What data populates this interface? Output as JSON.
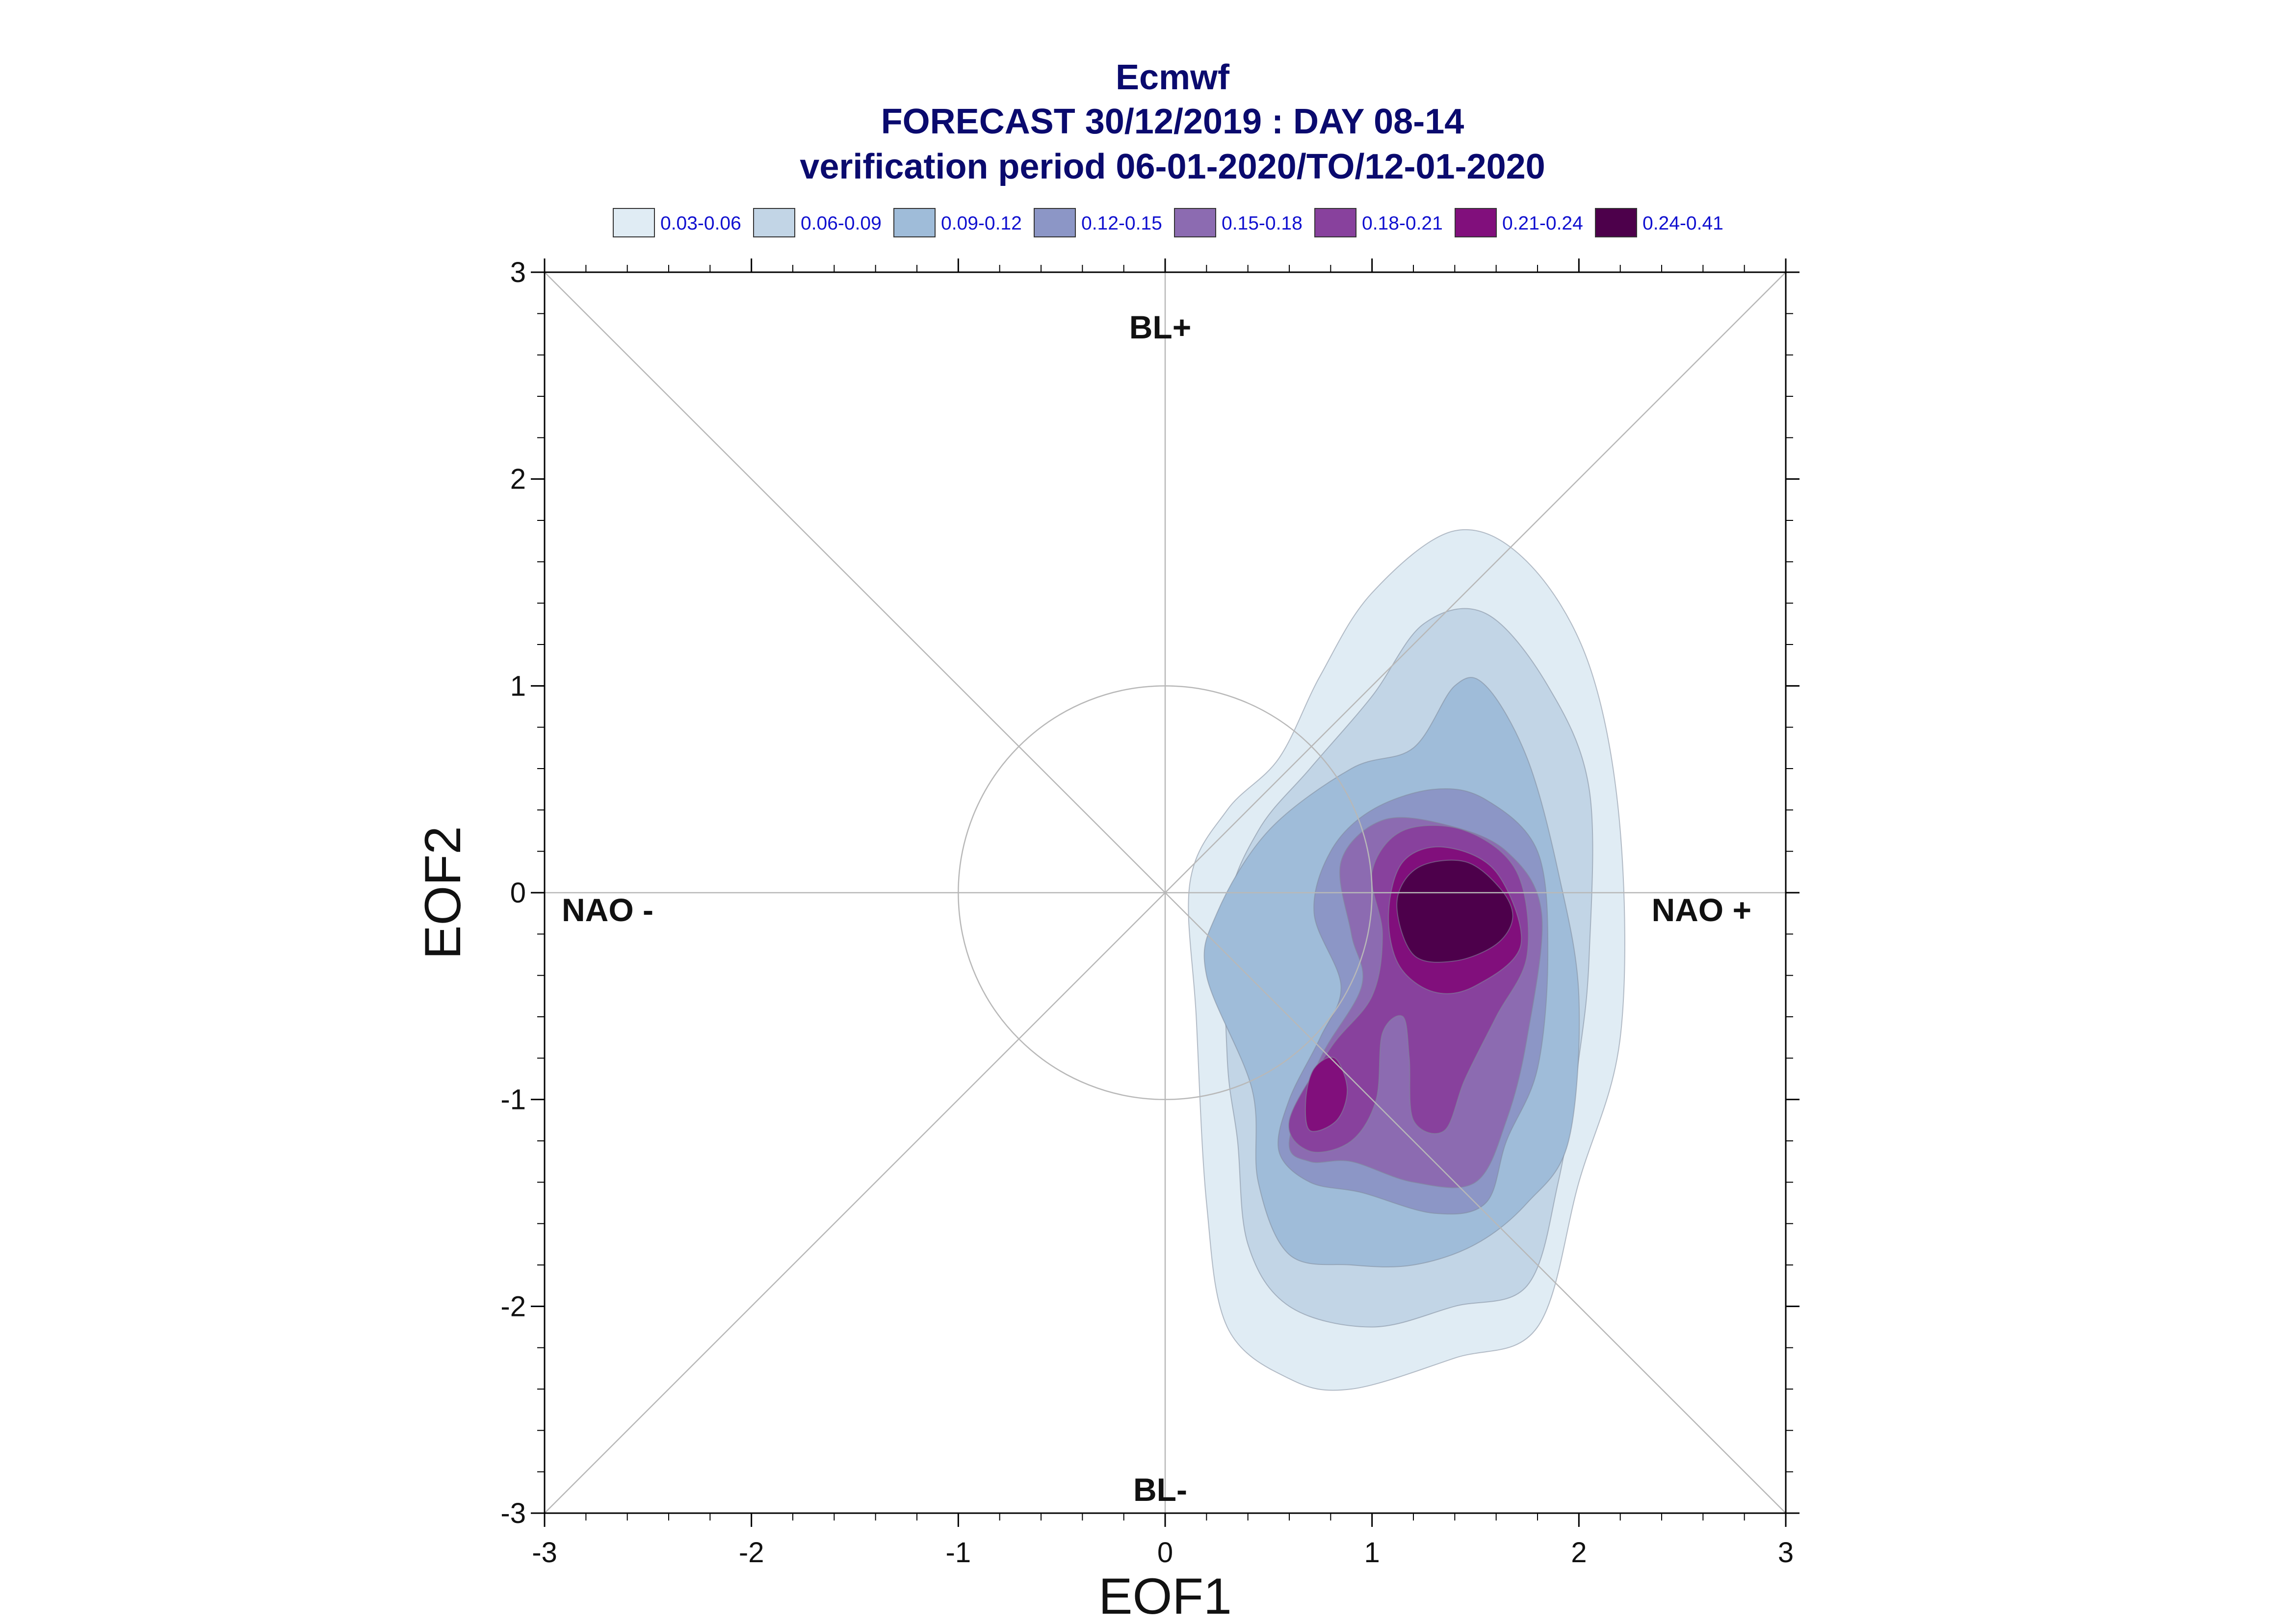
{
  "chart_data": {
    "type": "contour",
    "title_lines": [
      "Ecmwf",
      "FORECAST 30/12/2019 : DAY 08-14",
      "verification period 06-01-2020/TO/12-01-2020"
    ],
    "xlabel": "EOF1",
    "ylabel": "EOF2",
    "xlim": [
      -3,
      3
    ],
    "ylim": [
      -3,
      3
    ],
    "xticks": [
      "-3",
      "-2",
      "-1",
      "0",
      "1",
      "2",
      "3"
    ],
    "yticks": [
      "-3",
      "-2",
      "-1",
      "0",
      "1",
      "2",
      "3"
    ],
    "regime_labels": {
      "top": "BL+",
      "bottom": "BL-",
      "left": "NAO -",
      "right": "NAO +"
    },
    "reference_circle_radius": 1,
    "legend": [
      {
        "label": "0.03-0.06",
        "color": "#e0ecf4"
      },
      {
        "label": "0.06-0.09",
        "color": "#c2d5e6"
      },
      {
        "label": "0.09-0.12",
        "color": "#9fbcd9"
      },
      {
        "label": "0.12-0.15",
        "color": "#8c96c6"
      },
      {
        "label": "0.15-0.18",
        "color": "#8c6bb1"
      },
      {
        "label": "0.18-0.21",
        "color": "#88419d"
      },
      {
        "label": "0.21-0.24",
        "color": "#810f7c"
      },
      {
        "label": "0.24-0.41",
        "color": "#4d004b"
      }
    ],
    "contours": [
      {
        "level": "0.03-0.06",
        "polygons": [
          [
            [
              0.15,
              -0.6
            ],
            [
              0.12,
              0.05
            ],
            [
              0.3,
              0.4
            ],
            [
              0.55,
              0.65
            ],
            [
              0.75,
              1.05
            ],
            [
              1.0,
              1.45
            ],
            [
              1.4,
              1.75
            ],
            [
              1.75,
              1.6
            ],
            [
              2.05,
              1.1
            ],
            [
              2.2,
              0.3
            ],
            [
              2.2,
              -0.7
            ],
            [
              2.0,
              -1.4
            ],
            [
              1.8,
              -2.1
            ],
            [
              1.4,
              -2.25
            ],
            [
              0.9,
              -2.4
            ],
            [
              0.6,
              -2.35
            ],
            [
              0.3,
              -2.1
            ],
            [
              0.2,
              -1.5
            ]
          ]
        ]
      },
      {
        "level": "0.06-0.09",
        "polygons": [
          [
            [
              0.3,
              -0.8
            ],
            [
              0.3,
              -0.1
            ],
            [
              0.45,
              0.3
            ],
            [
              0.7,
              0.6
            ],
            [
              1.0,
              0.95
            ],
            [
              1.25,
              1.3
            ],
            [
              1.55,
              1.35
            ],
            [
              1.85,
              1.0
            ],
            [
              2.05,
              0.5
            ],
            [
              2.05,
              -0.3
            ],
            [
              2.0,
              -0.8
            ],
            [
              1.9,
              -1.4
            ],
            [
              1.75,
              -1.9
            ],
            [
              1.4,
              -2.0
            ],
            [
              1.0,
              -2.1
            ],
            [
              0.6,
              -2.0
            ],
            [
              0.4,
              -1.7
            ],
            [
              0.35,
              -1.2
            ]
          ]
        ]
      },
      {
        "level": "0.09-0.12",
        "polygons": [
          [
            [
              0.42,
              -0.95
            ],
            [
              0.2,
              -0.4
            ],
            [
              0.25,
              -0.1
            ],
            [
              0.5,
              0.3
            ],
            [
              0.9,
              0.6
            ],
            [
              1.2,
              0.7
            ],
            [
              1.4,
              1.0
            ],
            [
              1.55,
              1.0
            ],
            [
              1.75,
              0.65
            ],
            [
              1.9,
              0.1
            ],
            [
              2.0,
              -0.5
            ],
            [
              1.95,
              -1.2
            ],
            [
              1.75,
              -1.5
            ],
            [
              1.5,
              -1.7
            ],
            [
              1.2,
              -1.8
            ],
            [
              0.9,
              -1.8
            ],
            [
              0.6,
              -1.75
            ],
            [
              0.45,
              -1.4
            ]
          ]
        ]
      },
      {
        "level": "0.12-0.15",
        "polygons": [
          [
            [
              0.6,
              -1.0
            ],
            [
              0.75,
              -0.7
            ],
            [
              0.85,
              -0.45
            ],
            [
              0.72,
              -0.1
            ],
            [
              0.8,
              0.2
            ],
            [
              1.0,
              0.4
            ],
            [
              1.3,
              0.5
            ],
            [
              1.55,
              0.45
            ],
            [
              1.8,
              0.2
            ],
            [
              1.85,
              -0.3
            ],
            [
              1.8,
              -0.85
            ],
            [
              1.65,
              -1.2
            ],
            [
              1.55,
              -1.5
            ],
            [
              1.3,
              -1.55
            ],
            [
              0.95,
              -1.45
            ],
            [
              0.7,
              -1.4
            ],
            [
              0.55,
              -1.25
            ]
          ]
        ]
      },
      {
        "level": "0.15-0.18",
        "polygons": [
          [
            [
              0.6,
              -1.2
            ],
            [
              0.75,
              -0.8
            ],
            [
              0.95,
              -0.45
            ],
            [
              0.9,
              -0.2
            ],
            [
              0.85,
              0.15
            ],
            [
              1.05,
              0.35
            ],
            [
              1.35,
              0.33
            ],
            [
              1.65,
              0.2
            ],
            [
              1.82,
              -0.1
            ],
            [
              1.75,
              -0.7
            ],
            [
              1.65,
              -1.1
            ],
            [
              1.5,
              -1.4
            ],
            [
              1.2,
              -1.4
            ],
            [
              0.9,
              -1.3
            ],
            [
              0.7,
              -1.3
            ]
          ]
        ]
      },
      {
        "level": "0.18-0.21",
        "polygons": [
          [
            [
              0.6,
              -1.1
            ],
            [
              0.8,
              -0.75
            ],
            [
              1.0,
              -0.5
            ],
            [
              1.05,
              -0.2
            ],
            [
              1.0,
              0.1
            ],
            [
              1.15,
              0.3
            ],
            [
              1.45,
              0.3
            ],
            [
              1.7,
              0.1
            ],
            [
              1.75,
              -0.3
            ],
            [
              1.6,
              -0.6
            ],
            [
              1.45,
              -0.9
            ],
            [
              1.35,
              -1.15
            ],
            [
              1.2,
              -1.1
            ],
            [
              1.18,
              -0.8
            ],
            [
              1.15,
              -0.6
            ],
            [
              1.05,
              -0.68
            ],
            [
              1.02,
              -1.0
            ],
            [
              0.9,
              -1.2
            ],
            [
              0.7,
              -1.25
            ]
          ]
        ]
      },
      {
        "level": "0.21-0.24",
        "polygons": [
          [
            [
              1.08,
              -0.1
            ],
            [
              1.15,
              0.15
            ],
            [
              1.35,
              0.22
            ],
            [
              1.6,
              0.1
            ],
            [
              1.72,
              -0.25
            ],
            [
              1.5,
              -0.45
            ],
            [
              1.3,
              -0.48
            ],
            [
              1.13,
              -0.35
            ]
          ],
          [
            [
              0.68,
              -1.0
            ],
            [
              0.72,
              -0.85
            ],
            [
              0.82,
              -0.8
            ],
            [
              0.88,
              -0.95
            ],
            [
              0.83,
              -1.1
            ],
            [
              0.7,
              -1.15
            ]
          ]
        ]
      },
      {
        "level": "0.24-0.41",
        "polygons": [
          [
            [
              1.12,
              -0.05
            ],
            [
              1.22,
              0.12
            ],
            [
              1.45,
              0.15
            ],
            [
              1.62,
              0.02
            ],
            [
              1.68,
              -0.12
            ],
            [
              1.6,
              -0.25
            ],
            [
              1.4,
              -0.33
            ],
            [
              1.2,
              -0.3
            ]
          ]
        ]
      }
    ]
  }
}
